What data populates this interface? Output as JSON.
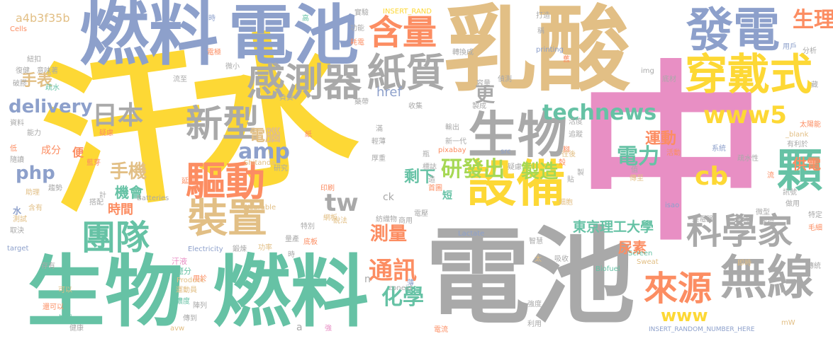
{
  "palette": {
    "yellow": "#fdd835",
    "pink": "#e88fc4",
    "tan": "#e2bf85",
    "grey": "#a9a9a9",
    "teal": "#66c2a5",
    "blue": "#8da0cb",
    "orange": "#fc8d62",
    "green": "#a6d854"
  },
  "words": [
    {
      "text": "汗水",
      "color": "yellow"
    },
    {
      "text": "中",
      "color": "pink"
    },
    {
      "text": "乳酸",
      "color": "tan"
    },
    {
      "text": "電池",
      "color": "grey"
    },
    {
      "text": "生物",
      "color": "teal"
    },
    {
      "text": "燃料",
      "color": "teal"
    },
    {
      "text": "燃料",
      "color": "blue"
    },
    {
      "text": "電池",
      "color": "blue"
    },
    {
      "text": "發電",
      "color": "blue"
    },
    {
      "text": "生物",
      "color": "grey"
    },
    {
      "text": "設備",
      "color": "yellow"
    },
    {
      "text": "穿戴式",
      "color": "yellow"
    },
    {
      "text": "含量",
      "color": "orange"
    },
    {
      "text": "紙質",
      "color": "grey"
    },
    {
      "text": "感測器",
      "color": "grey"
    },
    {
      "text": "新型",
      "color": "grey"
    },
    {
      "text": "驅動",
      "color": "orange"
    },
    {
      "text": "裝置",
      "color": "tan"
    },
    {
      "text": "團隊",
      "color": "teal"
    },
    {
      "text": "科學家",
      "color": "grey"
    },
    {
      "text": "無線",
      "color": "grey"
    },
    {
      "text": "來源",
      "color": "orange"
    },
    {
      "text": "顆",
      "color": "teal"
    },
    {
      "text": "technews",
      "color": "teal"
    },
    {
      "text": "www5",
      "color": "yellow"
    },
    {
      "text": "生理",
      "color": "orange"
    },
    {
      "text": "研發出",
      "color": "green"
    },
    {
      "text": "電力",
      "color": "teal"
    },
    {
      "text": "cb",
      "color": "yellow"
    },
    {
      "text": "更",
      "color": "grey"
    },
    {
      "text": "日本",
      "color": "grey"
    },
    {
      "text": "delivery",
      "color": "blue"
    },
    {
      "text": "php",
      "color": "blue"
    },
    {
      "text": "手表",
      "color": "tan"
    },
    {
      "text": "手機",
      "color": "tan"
    },
    {
      "text": "機會",
      "color": "teal"
    },
    {
      "text": "時間",
      "color": "orange"
    },
    {
      "text": "amp",
      "color": "blue"
    },
    {
      "text": "tw",
      "color": "grey"
    },
    {
      "text": "電腦",
      "color": "tan"
    },
    {
      "text": "製造",
      "color": "green"
    },
    {
      "text": "剩下",
      "color": "teal"
    },
    {
      "text": "運動",
      "color": "orange"
    },
    {
      "text": "供電",
      "color": "orange"
    },
    {
      "text": "東京理工大學",
      "color": "teal"
    },
    {
      "text": "測量",
      "color": "orange"
    },
    {
      "text": "通訊",
      "color": "orange"
    },
    {
      "text": "化學",
      "color": "teal"
    },
    {
      "text": "www",
      "color": "yellow"
    },
    {
      "text": "尿素",
      "color": "orange"
    },
    {
      "text": "a4b3f35b",
      "color": "tan"
    },
    {
      "text": "ck",
      "color": "grey"
    },
    {
      "text": "href",
      "color": "blue"
    },
    {
      "text": "INSERT_RAND",
      "color": "yellow"
    },
    {
      "text": "INSERT_RANDOM_NUMBER_HERE",
      "color": "blue"
    },
    {
      "text": "printing",
      "color": "blue"
    },
    {
      "text": "pixabay",
      "color": "orange"
    },
    {
      "text": "Shitanda",
      "color": "tan"
    },
    {
      "text": "Wearable",
      "color": "tan"
    },
    {
      "text": "Batteries",
      "color": "grey"
    },
    {
      "text": "Lactate",
      "color": "blue"
    },
    {
      "text": "Electricity",
      "color": "blue"
    },
    {
      "text": "Produce",
      "color": "tan"
    },
    {
      "text": "Screen",
      "color": "teal"
    },
    {
      "text": "Sweat",
      "color": "tan"
    },
    {
      "text": "Biofuel",
      "color": "teal"
    },
    {
      "text": "target",
      "color": "blue"
    },
    {
      "text": "Cells",
      "color": "orange"
    },
    {
      "text": "zoneid",
      "color": "grey"
    },
    {
      "text": "_blank",
      "color": "tan"
    },
    {
      "text": "isao",
      "color": "blue"
    },
    {
      "text": "img",
      "color": "grey"
    },
    {
      "text": "src",
      "color": "blue"
    },
    {
      "text": "avw",
      "color": "tan"
    },
    {
      "text": "mW",
      "color": "tan"
    },
    {
      "text": "成分",
      "color": "orange"
    },
    {
      "text": "便",
      "color": "orange"
    },
    {
      "text": "水",
      "color": "blue"
    },
    {
      "text": "n",
      "color": "grey"
    },
    {
      "text": "a",
      "color": "grey"
    },
    {
      "text": "疏水性",
      "color": "grey"
    },
    {
      "text": "汗液",
      "color": "pink"
    },
    {
      "text": "鹽分",
      "color": "teal"
    },
    {
      "text": "用於",
      "color": "orange"
    },
    {
      "text": "運動員",
      "color": "tan"
    },
    {
      "text": "濃度",
      "color": "teal"
    },
    {
      "text": "陣列",
      "color": "grey"
    },
    {
      "text": "傳到",
      "color": "grey"
    },
    {
      "text": "健康",
      "color": "grey"
    },
    {
      "text": "外觀",
      "color": "teal"
    },
    {
      "text": "可以",
      "color": "tan"
    },
    {
      "text": "還可以",
      "color": "orange"
    },
    {
      "text": "存有",
      "color": "grey"
    },
    {
      "text": "取決",
      "color": "grey"
    },
    {
      "text": "測試",
      "color": "tan"
    },
    {
      "text": "含有",
      "color": "tan"
    },
    {
      "text": "助理",
      "color": "tan"
    },
    {
      "text": "趨勢",
      "color": "grey"
    },
    {
      "text": "搭配",
      "color": "grey"
    },
    {
      "text": "延伸",
      "color": "orange"
    },
    {
      "text": "研究",
      "color": "grey"
    },
    {
      "text": "印刷",
      "color": "orange"
    },
    {
      "text": "網板",
      "color": "tan"
    },
    {
      "text": "說法",
      "color": "tan"
    },
    {
      "text": "底板",
      "color": "orange"
    },
    {
      "text": "功率",
      "color": "tan"
    },
    {
      "text": "鍛煉",
      "color": "grey"
    },
    {
      "text": "特別",
      "color": "grey"
    },
    {
      "text": "薄",
      "color": "blue"
    },
    {
      "text": "強度",
      "color": "grey"
    },
    {
      "text": "利用",
      "color": "grey"
    },
    {
      "text": "電流",
      "color": "orange"
    },
    {
      "text": "強",
      "color": "pink"
    },
    {
      "text": "太",
      "color": "tan"
    },
    {
      "text": "吸收",
      "color": "grey"
    },
    {
      "text": "即時",
      "color": "tan"
    },
    {
      "text": "傳統",
      "color": "grey"
    },
    {
      "text": "智慧",
      "color": "grey"
    },
    {
      "text": "細胞",
      "color": "tan"
    },
    {
      "text": "集電器",
      "color": "grey"
    },
    {
      "text": "臨準",
      "color": "grey"
    },
    {
      "text": "教授",
      "color": "grey"
    },
    {
      "text": "微型",
      "color": "grey"
    },
    {
      "text": "毛細",
      "color": "orange"
    },
    {
      "text": "特定",
      "color": "grey"
    },
    {
      "text": "做用",
      "color": "grey"
    },
    {
      "text": "訊號",
      "color": "grey"
    },
    {
      "text": "流",
      "color": "orange"
    },
    {
      "text": "貼",
      "color": "grey"
    },
    {
      "text": "腳",
      "color": "orange"
    },
    {
      "text": "製",
      "color": "grey"
    },
    {
      "text": "傳至",
      "color": "tan"
    },
    {
      "text": "值",
      "color": "grey"
    },
    {
      "text": "活動",
      "color": "orange"
    },
    {
      "text": "系統",
      "color": "blue"
    },
    {
      "text": "有利於",
      "color": "grey"
    },
    {
      "text": "太陽能",
      "color": "orange"
    },
    {
      "text": "藏",
      "color": "grey"
    },
    {
      "text": "底材",
      "color": "grey"
    },
    {
      "text": "用戶",
      "color": "blue"
    },
    {
      "text": "分析",
      "color": "grey"
    },
    {
      "text": "打造",
      "color": "grey"
    },
    {
      "text": "稱",
      "color": "grey"
    },
    {
      "text": "轉換成",
      "color": "grey"
    },
    {
      "text": "偵測",
      "color": "grey"
    },
    {
      "text": "容量",
      "color": "grey"
    },
    {
      "text": "製成",
      "color": "grey"
    },
    {
      "text": "收集",
      "color": "grey"
    },
    {
      "text": "輸出",
      "color": "grey"
    },
    {
      "text": "新一代",
      "color": "grey"
    },
    {
      "text": "標誌",
      "color": "grey"
    },
    {
      "text": "首圖",
      "color": "orange"
    },
    {
      "text": "短",
      "color": "teal"
    },
    {
      "text": "造",
      "color": "grey"
    },
    {
      "text": "紡織物",
      "color": "grey"
    },
    {
      "text": "電壓",
      "color": "grey"
    },
    {
      "text": "商用",
      "color": "grey"
    },
    {
      "text": "厚重",
      "color": "grey"
    },
    {
      "text": "輕薄",
      "color": "grey"
    },
    {
      "text": "滿",
      "color": "grey"
    },
    {
      "text": "紙",
      "color": "orange"
    },
    {
      "text": "負責",
      "color": "grey"
    },
    {
      "text": "流至",
      "color": "grey"
    },
    {
      "text": "微小",
      "color": "grey"
    },
    {
      "text": "電極",
      "color": "orange"
    },
    {
      "text": "小時",
      "color": "blue"
    },
    {
      "text": "高",
      "color": "teal"
    },
    {
      "text": "實驗",
      "color": "grey"
    },
    {
      "text": "功能",
      "color": "grey"
    },
    {
      "text": "耗電",
      "color": "orange"
    },
    {
      "text": "紐扣",
      "color": "grey"
    },
    {
      "text": "復健",
      "color": "grey"
    },
    {
      "text": "意味著",
      "color": "grey"
    },
    {
      "text": "破膠",
      "color": "grey"
    },
    {
      "text": "疏水",
      "color": "teal"
    },
    {
      "text": "資料",
      "color": "grey"
    },
    {
      "text": "能力",
      "color": "grey"
    },
    {
      "text": "疑慮",
      "color": "orange"
    },
    {
      "text": "低",
      "color": "orange"
    },
    {
      "text": "隨讀",
      "color": "grey"
    },
    {
      "text": "計",
      "color": "grey"
    },
    {
      "text": "量產",
      "color": "grey"
    },
    {
      "text": "時",
      "color": "grey"
    },
    {
      "text": "藍芽",
      "color": "orange"
    },
    {
      "text": "舊",
      "color": "orange"
    },
    {
      "text": "往後",
      "color": "tan"
    },
    {
      "text": "活度",
      "color": "grey"
    },
    {
      "text": "追蹤",
      "color": "grey"
    },
    {
      "text": "殼",
      "color": "orange"
    },
    {
      "text": "疑慮",
      "color": "grey"
    },
    {
      "text": "瓶",
      "color": "grey"
    },
    {
      "text": "藥帶",
      "color": "grey"
    }
  ]
}
